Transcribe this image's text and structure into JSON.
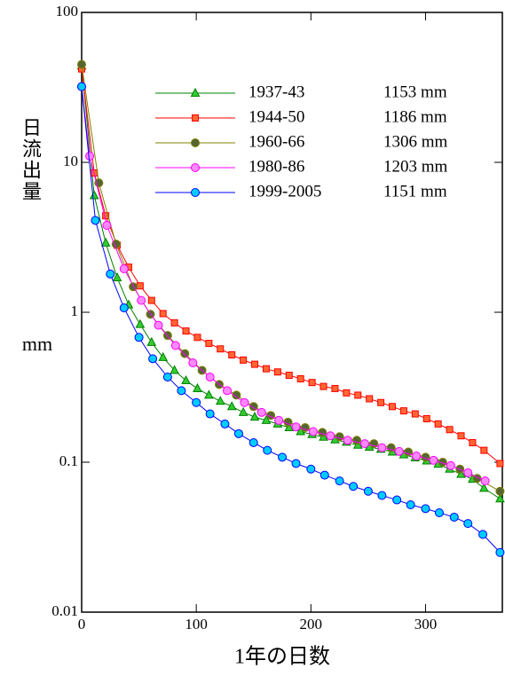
{
  "chart_data": {
    "type": "line",
    "x_label": "1年の日数",
    "y_label": "日流出量",
    "y_unit": "mm",
    "log_y": true,
    "xlim": [
      0,
      367
    ],
    "ylim": [
      0.01,
      100
    ],
    "xticks": [
      0,
      100,
      200,
      300
    ],
    "yticks": [
      0.01,
      0.1,
      1,
      10,
      100
    ],
    "series": [
      {
        "name": "1937-43",
        "annotation": "1153 mm",
        "color": "#008000",
        "marker": "triangle",
        "marker_color": "#33cc33",
        "x": [
          0,
          11,
          21,
          31,
          41,
          51,
          61,
          71,
          81,
          91,
          101,
          111,
          121,
          131,
          141,
          151,
          161,
          171,
          181,
          191,
          201,
          211,
          221,
          231,
          241,
          251,
          261,
          271,
          281,
          291,
          301,
          311,
          321,
          331,
          341,
          351,
          365
        ],
        "values": [
          44,
          6,
          2.9,
          1.7,
          1.12,
          0.83,
          0.63,
          0.5,
          0.41,
          0.35,
          0.31,
          0.28,
          0.255,
          0.235,
          0.215,
          0.2,
          0.19,
          0.18,
          0.17,
          0.16,
          0.153,
          0.147,
          0.141,
          0.136,
          0.13,
          0.126,
          0.122,
          0.117,
          0.112,
          0.107,
          0.102,
          0.097,
          0.09,
          0.083,
          0.077,
          0.067,
          0.057
        ]
      },
      {
        "name": "1944-50",
        "annotation": "1186 mm",
        "color": "#ff0000",
        "marker": "square",
        "marker_color": "#ff6633",
        "x": [
          0,
          11,
          21,
          31,
          41,
          51,
          61,
          71,
          81,
          91,
          101,
          111,
          121,
          131,
          141,
          151,
          161,
          171,
          181,
          191,
          201,
          211,
          221,
          231,
          241,
          251,
          261,
          271,
          281,
          291,
          301,
          311,
          321,
          331,
          341,
          351,
          365
        ],
        "values": [
          42,
          8.5,
          4.4,
          2.8,
          2.0,
          1.5,
          1.2,
          0.98,
          0.85,
          0.75,
          0.68,
          0.62,
          0.57,
          0.52,
          0.48,
          0.45,
          0.42,
          0.4,
          0.38,
          0.36,
          0.34,
          0.32,
          0.31,
          0.29,
          0.28,
          0.265,
          0.25,
          0.235,
          0.22,
          0.21,
          0.195,
          0.18,
          0.165,
          0.15,
          0.135,
          0.12,
          0.098
        ]
      },
      {
        "name": "1960-66",
        "annotation": "1306 mm",
        "color": "#808000",
        "marker": "circle",
        "marker_color": "#556633",
        "x": [
          0,
          15,
          30,
          45,
          60,
          75,
          90,
          105,
          120,
          135,
          150,
          165,
          180,
          195,
          210,
          225,
          240,
          255,
          270,
          285,
          300,
          315,
          330,
          345,
          365
        ],
        "values": [
          45,
          7.3,
          2.85,
          1.48,
          0.97,
          0.7,
          0.53,
          0.41,
          0.33,
          0.28,
          0.235,
          0.205,
          0.185,
          0.17,
          0.158,
          0.148,
          0.14,
          0.133,
          0.125,
          0.117,
          0.108,
          0.1,
          0.09,
          0.078,
          0.064
        ]
      },
      {
        "name": "1980-86",
        "annotation": "1203 mm",
        "color": "#ff00ff",
        "marker": "circle",
        "marker_color": "#ff88ff",
        "x": [
          0,
          7,
          22,
          37,
          52,
          67,
          82,
          97,
          112,
          127,
          142,
          157,
          172,
          187,
          202,
          217,
          232,
          247,
          262,
          277,
          292,
          307,
          322,
          337,
          352
        ],
        "values": [
          32,
          11,
          3.8,
          1.95,
          1.2,
          0.82,
          0.6,
          0.46,
          0.37,
          0.3,
          0.25,
          0.215,
          0.19,
          0.172,
          0.16,
          0.15,
          0.14,
          0.133,
          0.125,
          0.118,
          0.11,
          0.103,
          0.095,
          0.085,
          0.075
        ]
      },
      {
        "name": "1999-2005",
        "annotation": "1151 mm",
        "color": "#0000ff",
        "marker": "circle",
        "marker_color": "#00ccff",
        "x": [
          0,
          12,
          25,
          37,
          50,
          62,
          75,
          87,
          100,
          112,
          125,
          137,
          150,
          162,
          175,
          187,
          200,
          212,
          225,
          237,
          250,
          262,
          275,
          287,
          300,
          312,
          325,
          337,
          350,
          365
        ],
        "values": [
          32,
          4.1,
          1.8,
          1.07,
          0.68,
          0.49,
          0.37,
          0.3,
          0.25,
          0.21,
          0.18,
          0.155,
          0.135,
          0.12,
          0.108,
          0.098,
          0.09,
          0.082,
          0.075,
          0.069,
          0.064,
          0.06,
          0.056,
          0.052,
          0.049,
          0.046,
          0.043,
          0.039,
          0.033,
          0.025
        ]
      }
    ]
  }
}
